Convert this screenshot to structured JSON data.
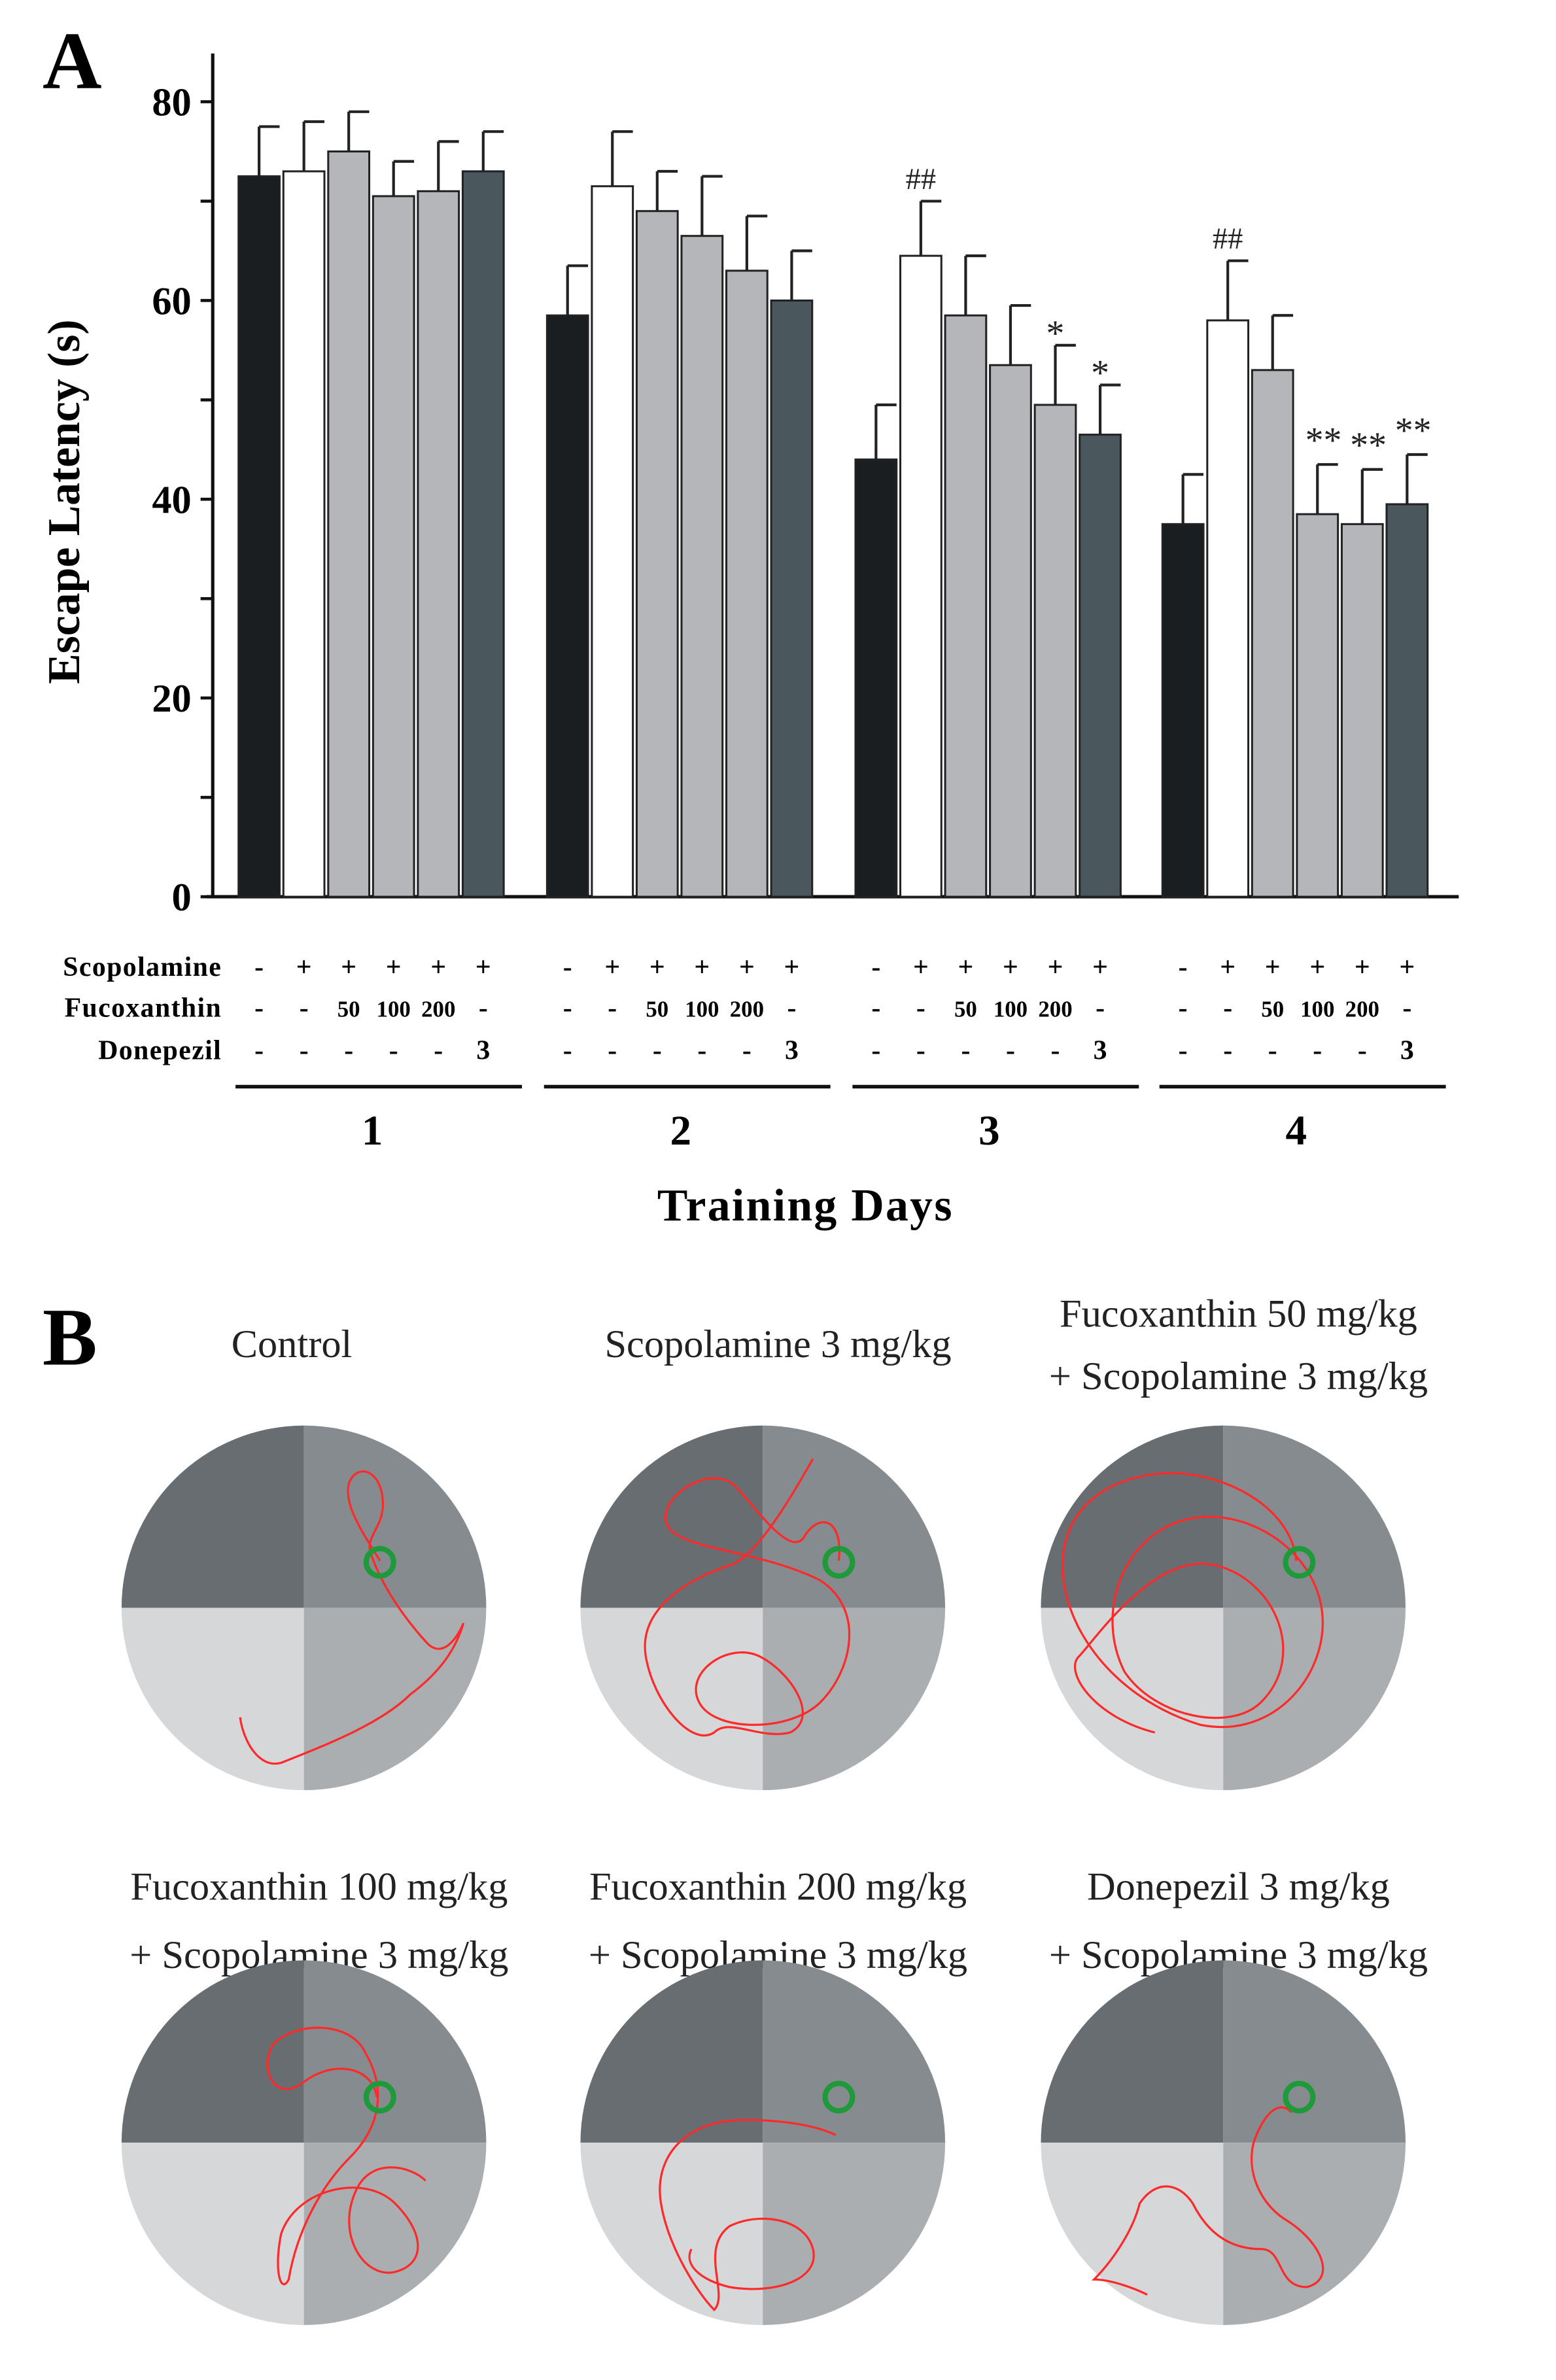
{
  "panel_a": {
    "label": "A",
    "chart_data": {
      "type": "bar",
      "title": "",
      "xlabel": "Training  Days",
      "ylabel": "Escape Latency (s)",
      "ylim": [
        0,
        85
      ],
      "yticks": [
        "0",
        "20",
        "40",
        "60",
        "80"
      ],
      "categories": [
        "1",
        "2",
        "3",
        "4"
      ],
      "groups": [
        "Control",
        "Scopolamine",
        "Fucoxanthin 50 + Scopolamine",
        "Fucoxanthin 100 + Scopolamine",
        "Fucoxanthin 200 + Scopolamine",
        "Donepezil 3 + Scopolamine"
      ],
      "colors": [
        "#1a1e20",
        "#ffffff",
        "#b4b6ba",
        "#b4b6ba",
        "#b4b6ba",
        "#4a585e"
      ],
      "series": [
        {
          "name": "Control",
          "values": [
            72.5,
            58.5,
            44,
            37.5
          ],
          "error": [
            5,
            5,
            5.5,
            5
          ]
        },
        {
          "name": "Scopolamine",
          "values": [
            73,
            71.5,
            64.5,
            58
          ],
          "error": [
            5,
            5.5,
            5.5,
            6
          ]
        },
        {
          "name": "Fucoxanthin 50",
          "values": [
            75,
            69,
            58.5,
            53
          ],
          "error": [
            4,
            4,
            6,
            5.5
          ]
        },
        {
          "name": "Fucoxanthin 100",
          "values": [
            70.5,
            66.5,
            53.5,
            38.5
          ],
          "error": [
            3.5,
            6,
            6,
            5
          ]
        },
        {
          "name": "Fucoxanthin 200",
          "values": [
            71,
            63,
            49.5,
            37.5
          ],
          "error": [
            5,
            5.5,
            6,
            5.5
          ]
        },
        {
          "name": "Donepezil 3",
          "values": [
            73,
            60,
            46.5,
            39.5
          ],
          "error": [
            4,
            5,
            5,
            5
          ]
        }
      ],
      "annotations": [
        {
          "day": "3",
          "bar": 1,
          "text": "##"
        },
        {
          "day": "3",
          "bar": 4,
          "text": "*"
        },
        {
          "day": "3",
          "bar": 5,
          "text": "*"
        },
        {
          "day": "4",
          "bar": 1,
          "text": "##"
        },
        {
          "day": "4",
          "bar": 3,
          "text": "**"
        },
        {
          "day": "4",
          "bar": 4,
          "text": "**"
        },
        {
          "day": "4",
          "bar": 5,
          "text": "**"
        }
      ]
    },
    "conditions": {
      "rows": [
        {
          "label": "Scopolamine",
          "values": [
            "-",
            "+",
            "+",
            "+",
            "+",
            "+"
          ]
        },
        {
          "label": "Fucoxanthin",
          "values": [
            "-",
            "-",
            "50",
            "100",
            "200",
            "-"
          ]
        },
        {
          "label": "Donepezil",
          "values": [
            "-",
            "-",
            "-",
            "-",
            "-",
            "3"
          ]
        }
      ]
    }
  },
  "panel_b": {
    "label": "B",
    "quadrant_colors": [
      "#676d71",
      "#858b8e",
      "#d5d7d9",
      "#aaaeb1"
    ],
    "path_color": "#ff2a2a",
    "platform_color": "#1f9a3a",
    "mazes": [
      {
        "title_lines": [
          "Control"
        ]
      },
      {
        "title_lines": [
          "Scopolamine 3 mg/kg"
        ]
      },
      {
        "title_lines": [
          "Fucoxanthin 50 mg/kg",
          "+ Scopolamine 3 mg/kg"
        ]
      },
      {
        "title_lines": [
          "Fucoxanthin 100 mg/kg",
          "+ Scopolamine 3 mg/kg"
        ]
      },
      {
        "title_lines": [
          "Fucoxanthin 200 mg/kg",
          "+ Scopolamine 3 mg/kg"
        ]
      },
      {
        "title_lines": [
          "Donepezil 3 mg/kg",
          "+ Scopolamine 3 mg/kg"
        ]
      }
    ]
  }
}
